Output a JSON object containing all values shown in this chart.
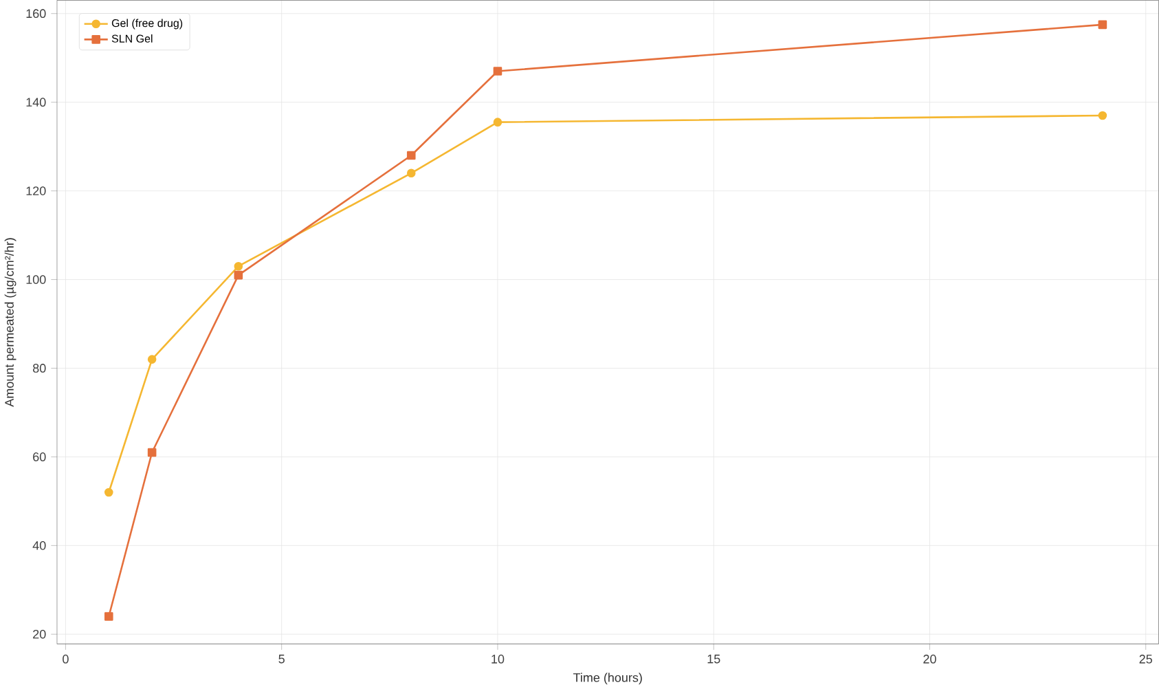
{
  "chart_data": {
    "type": "line",
    "xlabel": "Time (hours)",
    "ylabel": "Amount permeated (µg/cm²/hr)",
    "x": [
      1,
      2,
      4,
      8,
      10,
      24
    ],
    "series": [
      {
        "name": "Gel (free drug)",
        "color": "#f5b731",
        "marker": "circle",
        "values": [
          52,
          82,
          103,
          124,
          135.5,
          137
        ]
      },
      {
        "name": "SLN Gel",
        "color": "#e5703c",
        "marker": "square",
        "values": [
          24,
          61,
          101,
          128,
          147,
          157.5
        ]
      }
    ],
    "xlim": [
      -0.2,
      25.3
    ],
    "ylim": [
      17.8,
      163
    ],
    "xticks": [
      0,
      5,
      10,
      15,
      20,
      25
    ],
    "yticks": [
      20,
      40,
      60,
      80,
      100,
      120,
      140,
      160
    ],
    "grid": true,
    "legend": "top left",
    "line_style": "solid"
  }
}
